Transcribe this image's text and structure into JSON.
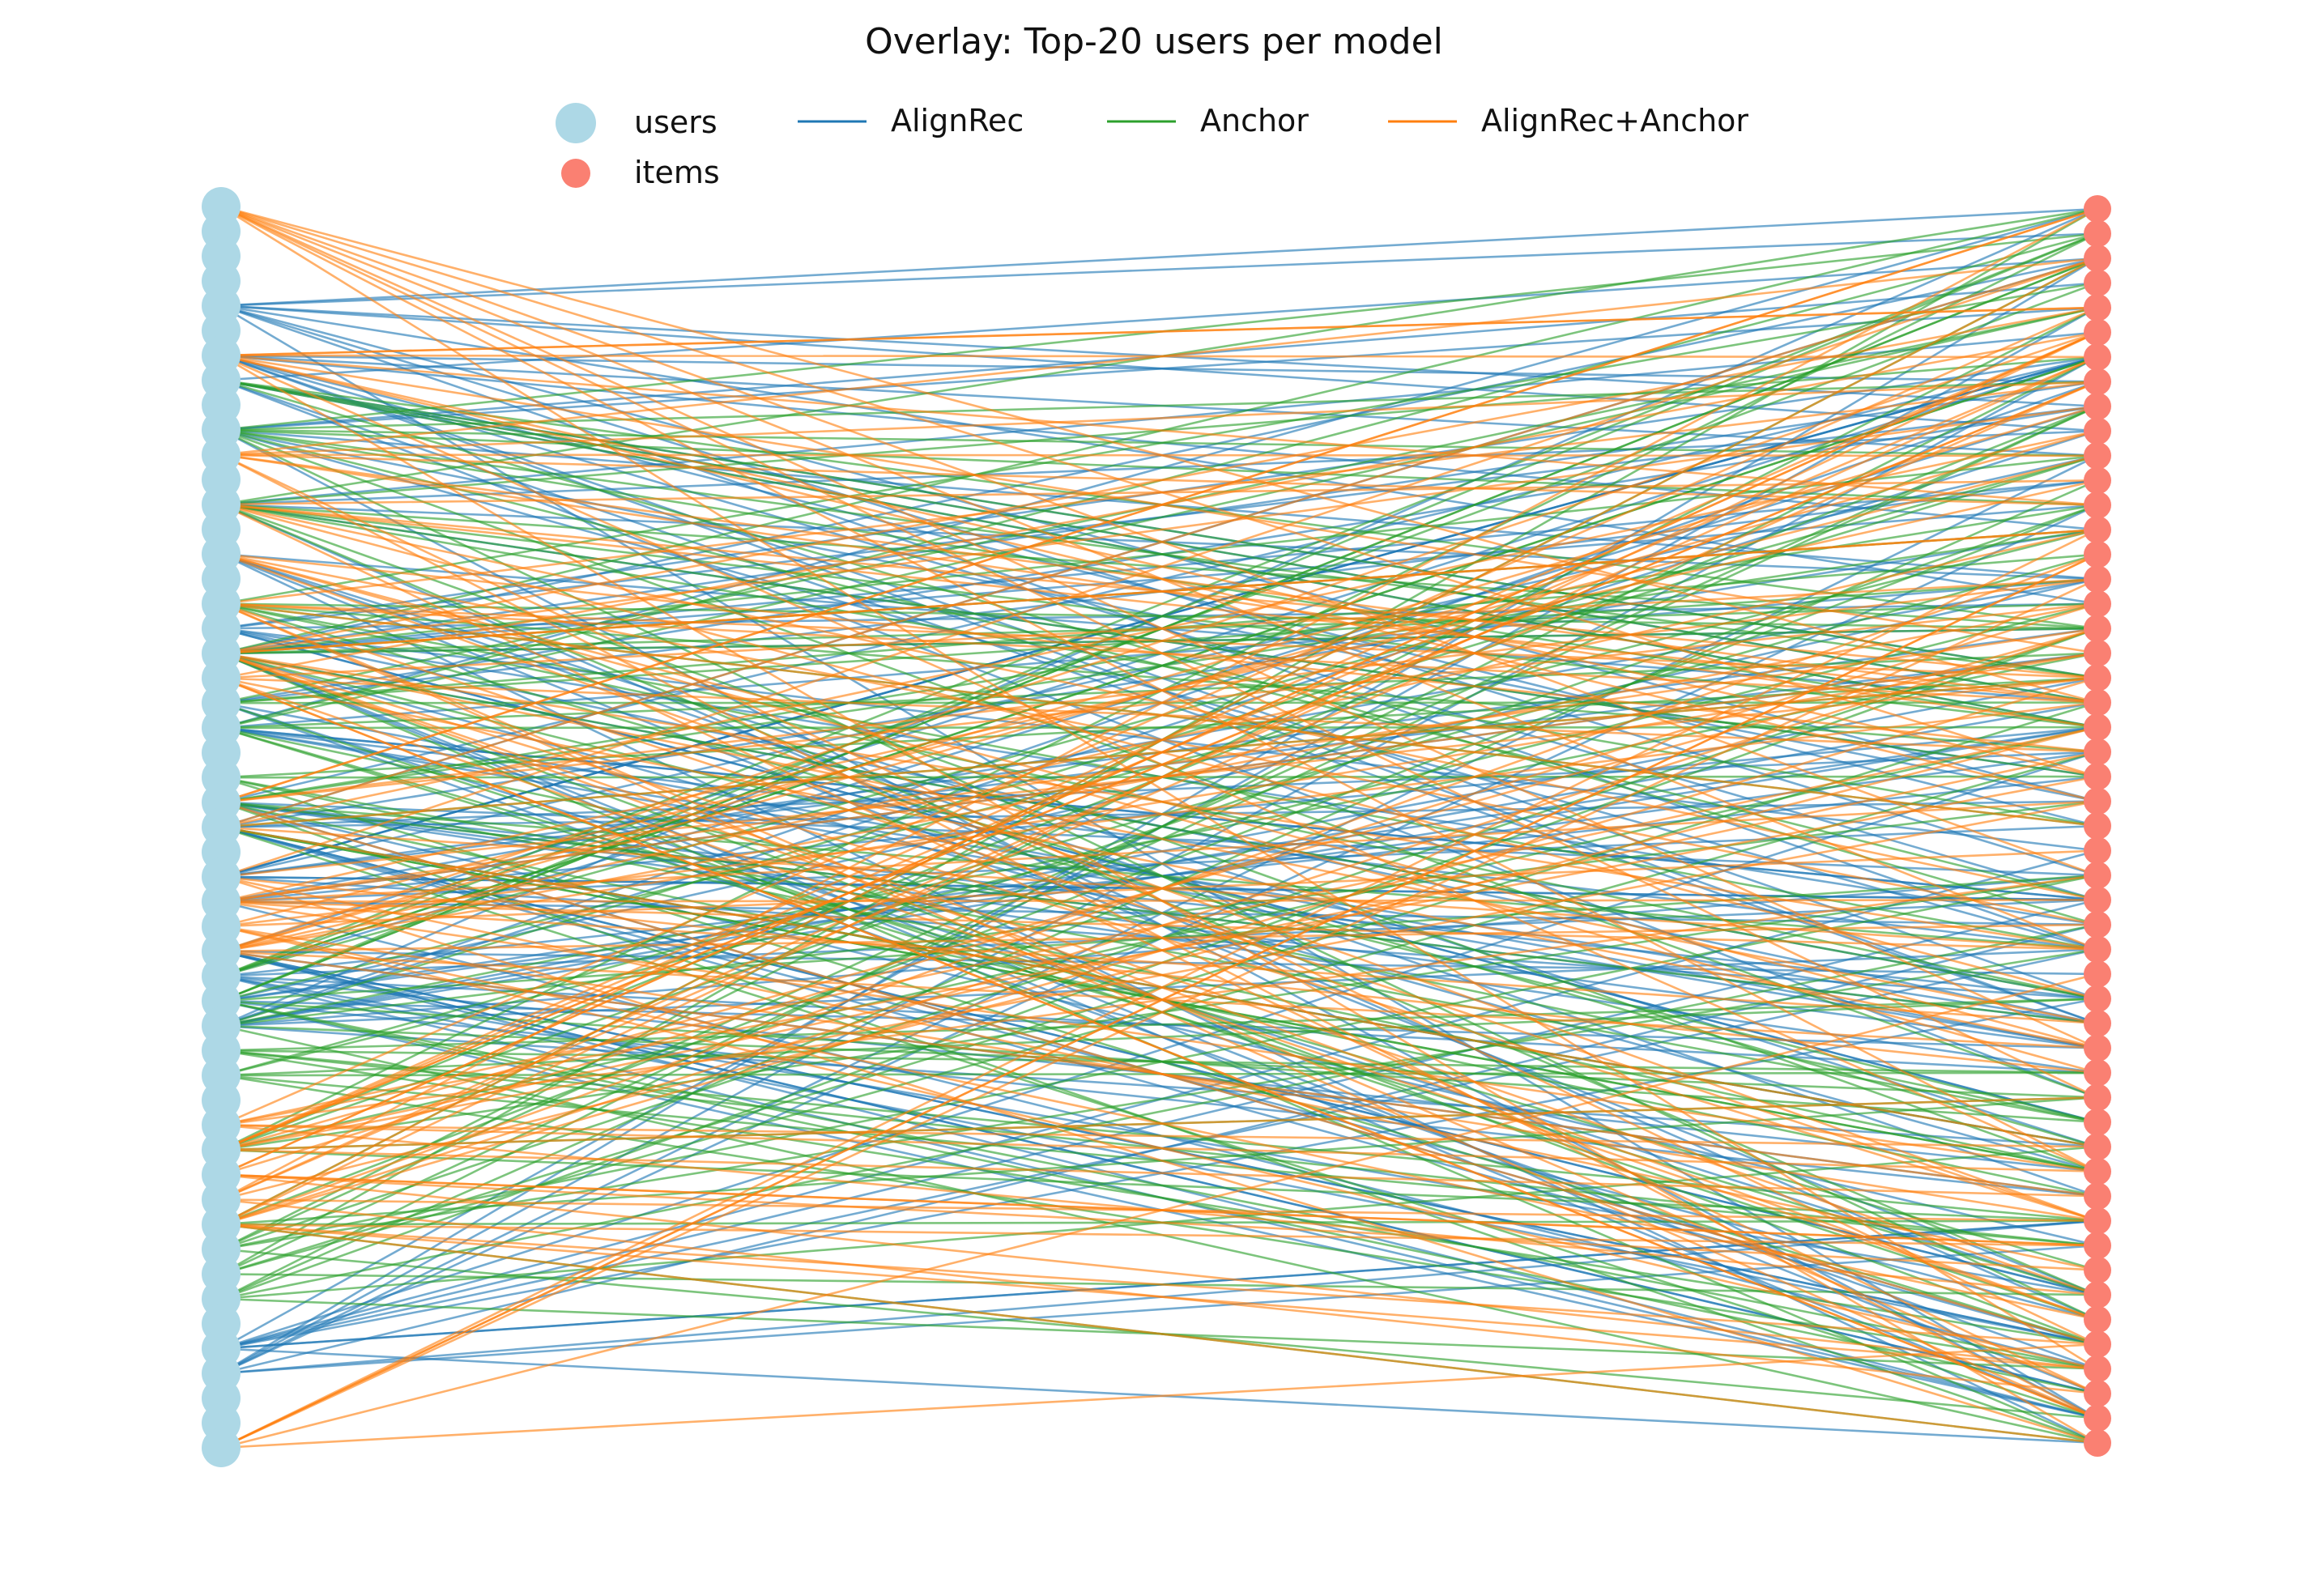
{
  "chart_data": {
    "type": "bipartite",
    "title": "Overlay: Top-20 users per model",
    "node_sets": [
      {
        "name": "users",
        "side": "left",
        "count": 51,
        "color": "#add8e6"
      },
      {
        "name": "items",
        "side": "right",
        "count": 51,
        "color": "#fa8072"
      }
    ],
    "series": [
      {
        "name": "AlignRec",
        "color": "#1f77b4"
      },
      {
        "name": "Anchor",
        "color": "#2ca02c"
      },
      {
        "name": "AlignRec+Anchor",
        "color": "#ff7f0e"
      }
    ],
    "top_k": 20,
    "legend_position": "top-center",
    "axes": "off",
    "grid": false
  }
}
